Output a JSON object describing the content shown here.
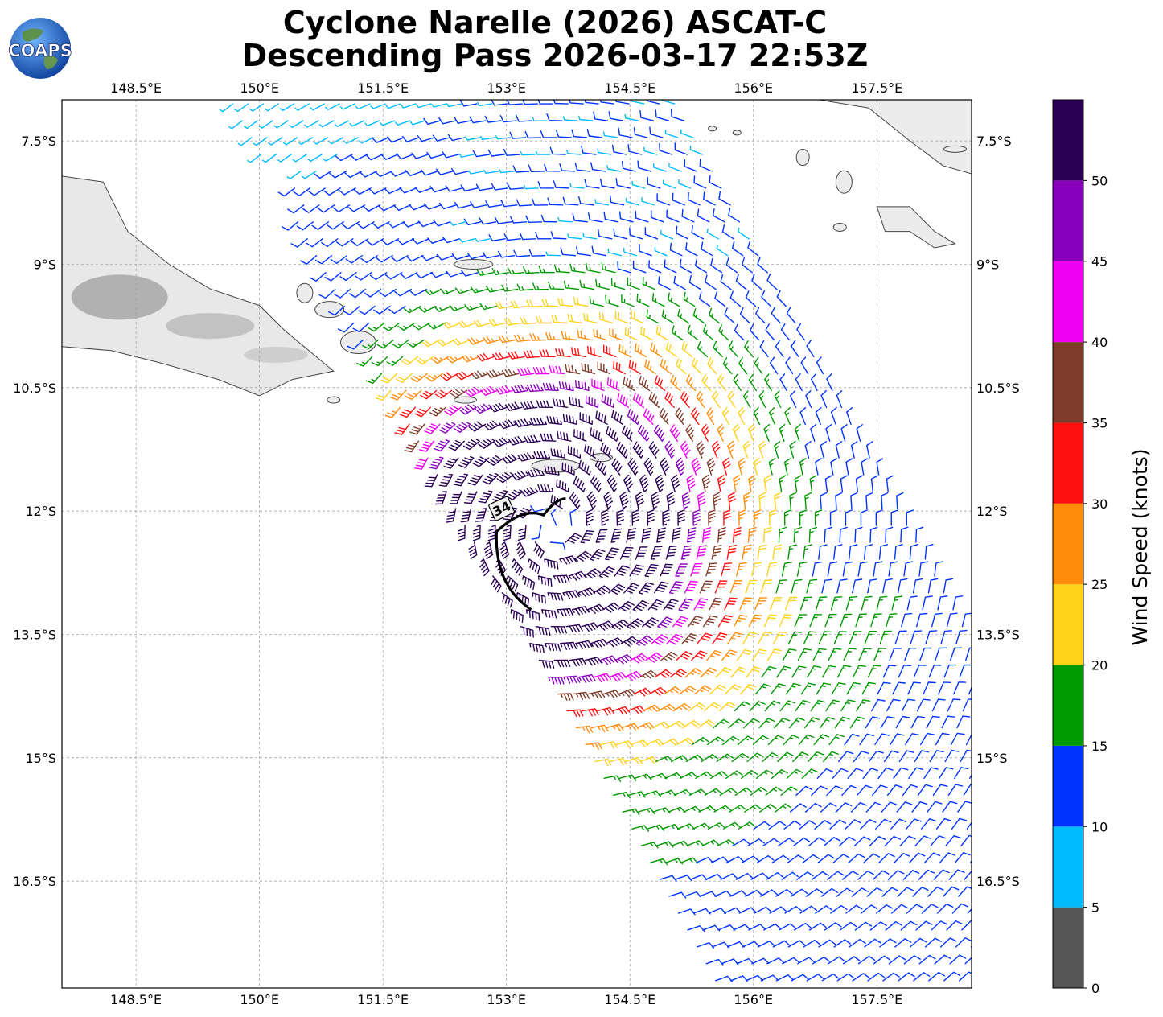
{
  "header": {
    "title_line1": "Cyclone Narelle (2026) ASCAT-C",
    "title_line2": "Descending Pass 2026-03-17 22:53Z",
    "logo_text": "COAPS"
  },
  "chart_data": {
    "type": "wind-barb-map",
    "title": "Cyclone Narelle (2026) ASCAT-C Descending Pass 2026-03-17 22:53Z",
    "x_axis": {
      "unit": "degrees East",
      "range": [
        147.6,
        158.65
      ],
      "ticks": [
        148.5,
        150,
        151.5,
        153,
        154.5,
        156,
        157.5
      ],
      "tick_labels": [
        "148.5°E",
        "150°E",
        "151.5°E",
        "153°E",
        "154.5°E",
        "156°E",
        "157.5°E"
      ]
    },
    "y_axis": {
      "unit": "degrees South",
      "range": [
        -7.0,
        -17.8
      ],
      "ticks": [
        -7.5,
        -9,
        -10.5,
        -12,
        -13.5,
        -15,
        -16.5
      ],
      "tick_labels": [
        "7.5°S",
        "9°S",
        "10.5°S",
        "12°S",
        "13.5°S",
        "15°S",
        "16.5°S"
      ]
    },
    "grid": true,
    "colorbar": {
      "label": "Wind Speed (knots)",
      "bounds": [
        0,
        5,
        10,
        15,
        20,
        25,
        30,
        35,
        40,
        45,
        50,
        55
      ],
      "tick_labels": [
        "0",
        "5",
        "10",
        "15",
        "20",
        "25",
        "30",
        "35",
        "40",
        "45",
        "50"
      ],
      "colors": [
        "#555555",
        "#00bbff",
        "#0033ff",
        "#009900",
        "#ffd21a",
        "#ff8c0a",
        "#ff1010",
        "#7f3c2a",
        "#f000f0",
        "#8800bb",
        "#2a0055"
      ]
    },
    "contour": {
      "label": "34",
      "units": "knots",
      "color": "#000000"
    },
    "storm_center": {
      "lon": 153.55,
      "lat": -12.2
    }
  }
}
